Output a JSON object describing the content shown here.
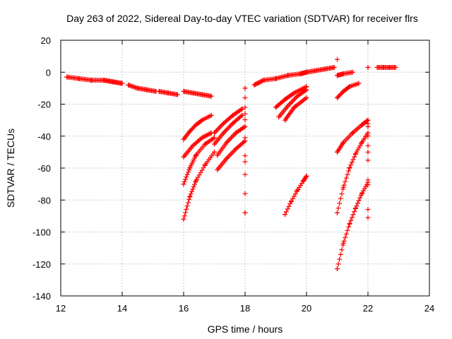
{
  "chart_data": {
    "type": "scatter",
    "title": "Day 263 of 2022, Sidereal Day-to-day VTEC variation (SDTVAR) for receiver flrs",
    "xlabel": "GPS time / hours",
    "ylabel": "SDTVAR / TECUs",
    "xlim": [
      12,
      24
    ],
    "ylim": [
      -140,
      20
    ],
    "xticks": [
      12,
      14,
      16,
      18,
      20,
      22,
      24
    ],
    "yticks": [
      -140,
      -120,
      -100,
      -80,
      -60,
      -40,
      -20,
      0,
      20
    ],
    "xtick_labels": [
      "12",
      "14",
      "16",
      "18",
      "20",
      "22",
      "24"
    ],
    "ytick_labels": [
      "-140",
      "-120",
      "-100",
      "-80",
      "-60",
      "-40",
      "-20",
      "0",
      "20"
    ],
    "grid": true,
    "marker": "+",
    "color": "#ff0000",
    "series": [
      {
        "name": "arc-1",
        "x": [
          12.2,
          12.6,
          13.0,
          13.4,
          13.7,
          14.0
        ],
        "y": [
          -3,
          -4,
          -5,
          -5,
          -6,
          -7
        ]
      },
      {
        "name": "arc-2",
        "x": [
          14.2,
          14.5,
          14.8,
          15.1
        ],
        "y": [
          -8,
          -10,
          -11,
          -12
        ]
      },
      {
        "name": "arc-3",
        "x": [
          15.2,
          15.5,
          15.8
        ],
        "y": [
          -12,
          -13,
          -14
        ]
      },
      {
        "name": "arc-4",
        "x": [
          16.0,
          16.3,
          16.6,
          16.9
        ],
        "y": [
          -12,
          -13,
          -14,
          -15
        ]
      },
      {
        "name": "arc-5",
        "x": [
          16.0,
          16.2,
          16.4,
          16.6,
          16.9
        ],
        "y": [
          -42,
          -37,
          -33,
          -30,
          -27
        ]
      },
      {
        "name": "arc-6",
        "x": [
          16.0,
          16.3,
          16.6,
          16.9
        ],
        "y": [
          -53,
          -46,
          -41,
          -38
        ]
      },
      {
        "name": "arc-7",
        "x": [
          16.0,
          16.2,
          16.4,
          16.7,
          17.0
        ],
        "y": [
          -70,
          -60,
          -52,
          -45,
          -41
        ]
      },
      {
        "name": "arc-8",
        "x": [
          16.0,
          16.2,
          16.4,
          16.7,
          17.0
        ],
        "y": [
          -92,
          -78,
          -68,
          -58,
          -50
        ]
      },
      {
        "name": "arc-9",
        "x": [
          17.0,
          17.3,
          17.6,
          17.9
        ],
        "y": [
          -38,
          -32,
          -27,
          -23
        ]
      },
      {
        "name": "arc-10",
        "x": [
          17.0,
          17.3,
          17.6,
          17.9
        ],
        "y": [
          -45,
          -38,
          -32,
          -27
        ]
      },
      {
        "name": "arc-11",
        "x": [
          17.1,
          17.4,
          17.7,
          18.0
        ],
        "y": [
          -52,
          -44,
          -38,
          -34
        ]
      },
      {
        "name": "arc-12",
        "x": [
          17.1,
          17.4,
          17.7,
          18.0
        ],
        "y": [
          -61,
          -54,
          -48,
          -43
        ]
      },
      {
        "name": "isolated-18",
        "x": [
          18.0,
          18.0,
          18.0,
          18.0
        ],
        "y": [
          -10,
          -26,
          -56,
          -88
        ]
      },
      {
        "name": "arc-13",
        "x": [
          18.3,
          18.6,
          19.0,
          19.4,
          19.8,
          20.0
        ],
        "y": [
          -8,
          -5,
          -4,
          -2,
          -1,
          0
        ]
      },
      {
        "name": "arc-14",
        "x": [
          20.0,
          20.3,
          20.6,
          20.9
        ],
        "y": [
          0,
          1,
          2,
          3
        ]
      },
      {
        "name": "arc-15",
        "x": [
          19.0,
          19.3,
          19.6,
          20.0
        ],
        "y": [
          -22,
          -17,
          -13,
          -9
        ]
      },
      {
        "name": "arc-16",
        "x": [
          19.1,
          19.4,
          19.7,
          20.0
        ],
        "y": [
          -28,
          -21,
          -15,
          -11
        ]
      },
      {
        "name": "arc-17",
        "x": [
          19.3,
          19.6,
          20.0
        ],
        "y": [
          -30,
          -22,
          -16
        ]
      },
      {
        "name": "arc-18",
        "x": [
          19.3,
          19.5,
          19.7,
          19.9,
          20.0
        ],
        "y": [
          -89,
          -81,
          -74,
          -68,
          -65
        ]
      },
      {
        "name": "arc-19",
        "x": [
          21.0,
          21.2,
          21.5
        ],
        "y": [
          -2,
          -1,
          0
        ]
      },
      {
        "name": "arc-20",
        "x": [
          21.0,
          21.2,
          21.4,
          21.7
        ],
        "y": [
          -16,
          -12,
          -9,
          -7
        ]
      },
      {
        "name": "isolated-21",
        "x": [
          21.0
        ],
        "y": [
          8
        ]
      },
      {
        "name": "arc-21",
        "x": [
          21.0,
          21.2,
          21.5,
          21.8,
          22.0
        ],
        "y": [
          -50,
          -44,
          -38,
          -33,
          -30
        ]
      },
      {
        "name": "arc-22",
        "x": [
          21.0,
          21.2,
          21.4,
          21.6,
          21.8,
          22.0
        ],
        "y": [
          -88,
          -72,
          -60,
          -51,
          -44,
          -38
        ]
      },
      {
        "name": "arc-23",
        "x": [
          21.0,
          21.2,
          21.4,
          21.6,
          21.8,
          22.0
        ],
        "y": [
          -123,
          -107,
          -95,
          -85,
          -76,
          -69
        ]
      },
      {
        "name": "isolated-22",
        "x": [
          22.0,
          22.0,
          22.0,
          22.0
        ],
        "y": [
          -34,
          -50,
          -91,
          3
        ]
      },
      {
        "name": "arc-24",
        "x": [
          22.3,
          22.5,
          22.7,
          22.9
        ],
        "y": [
          3,
          3,
          3,
          3
        ]
      }
    ]
  }
}
